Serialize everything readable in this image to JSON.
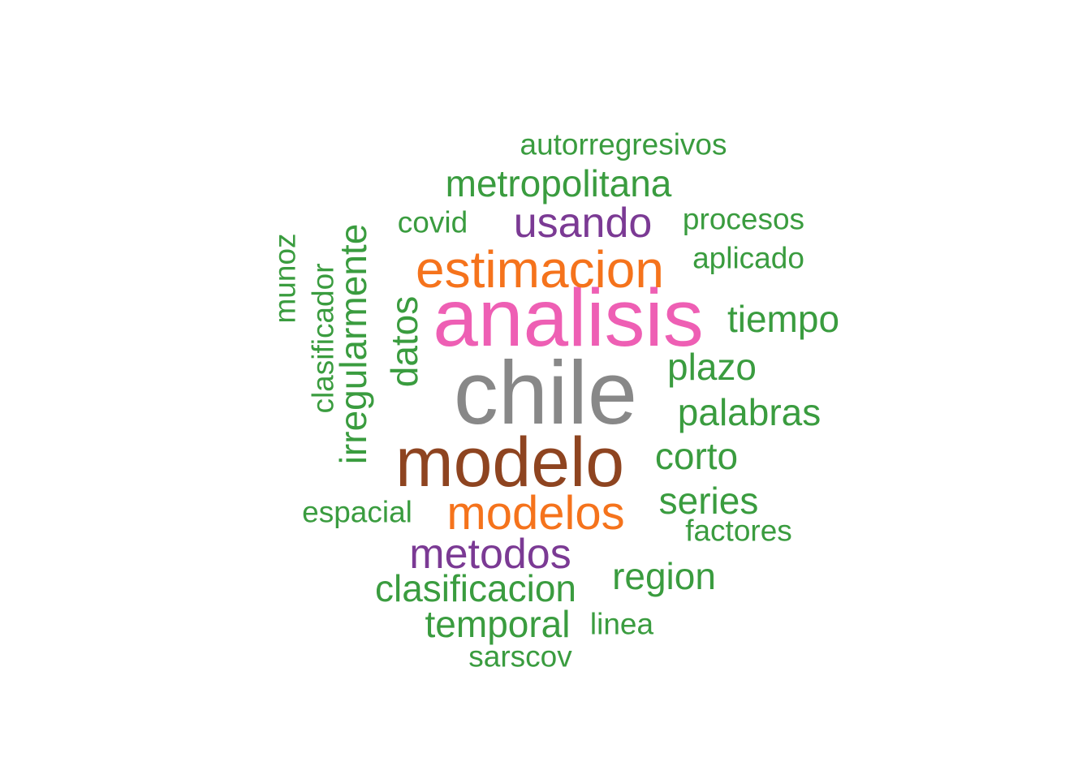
{
  "palette": {
    "pink": "#e7298a",
    "gray": "#808080",
    "brown": "#8b4513",
    "orange": "#f46d0e",
    "purple": "#7b3294",
    "green": "#3a9a3a"
  },
  "words": [
    {
      "text": "analisis",
      "color": "#ee5fb4",
      "rank": 1
    },
    {
      "text": "chile",
      "color": "#888888",
      "rank": 1
    },
    {
      "text": "modelo",
      "color": "#8e4420",
      "rank": 1
    },
    {
      "text": "estimacion",
      "color": "#f5731c",
      "rank": 2
    },
    {
      "text": "modelos",
      "color": "#f5731c",
      "rank": 2
    },
    {
      "text": "usando",
      "color": "#7b3a94",
      "rank": 3
    },
    {
      "text": "metodos",
      "color": "#7b3a94",
      "rank": 3
    },
    {
      "text": "metropolitana",
      "color": "#3a9c3f",
      "rank": 4
    },
    {
      "text": "autorregresivos",
      "color": "#3a9c3f",
      "rank": 4
    },
    {
      "text": "covid",
      "color": "#3a9c3f",
      "rank": 4
    },
    {
      "text": "procesos",
      "color": "#3a9c3f",
      "rank": 4
    },
    {
      "text": "aplicado",
      "color": "#3a9c3f",
      "rank": 4
    },
    {
      "text": "tiempo",
      "color": "#3a9c3f",
      "rank": 4
    },
    {
      "text": "plazo",
      "color": "#3a9c3f",
      "rank": 4
    },
    {
      "text": "palabras",
      "color": "#3a9c3f",
      "rank": 4
    },
    {
      "text": "corto",
      "color": "#3a9c3f",
      "rank": 4
    },
    {
      "text": "series",
      "color": "#3a9c3f",
      "rank": 4
    },
    {
      "text": "factores",
      "color": "#3a9c3f",
      "rank": 4
    },
    {
      "text": "region",
      "color": "#3a9c3f",
      "rank": 4
    },
    {
      "text": "clasificacion",
      "color": "#3a9c3f",
      "rank": 4
    },
    {
      "text": "temporal",
      "color": "#3a9c3f",
      "rank": 4
    },
    {
      "text": "linea",
      "color": "#3a9c3f",
      "rank": 4
    },
    {
      "text": "sarscov",
      "color": "#3a9c3f",
      "rank": 4
    },
    {
      "text": "espacial",
      "color": "#3a9c3f",
      "rank": 4
    },
    {
      "text": "datos",
      "color": "#3a9c3f",
      "rank": 4
    },
    {
      "text": "irregularmente",
      "color": "#3a9c3f",
      "rank": 4
    },
    {
      "text": "clasificador",
      "color": "#3a9c3f",
      "rank": 4
    },
    {
      "text": "munoz",
      "color": "#3a9c3f",
      "rank": 4
    }
  ]
}
